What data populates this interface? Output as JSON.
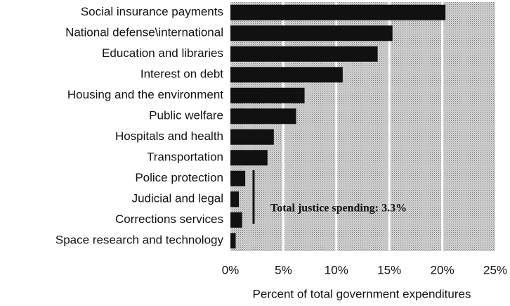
{
  "chart_data": {
    "type": "barh",
    "categories": [
      "Social insurance payments",
      "National defense\\international",
      "Education and libraries",
      "Interest on debt",
      "Housing and the environment",
      "Public welfare",
      "Hospitals and health",
      "Transportation",
      "Police protection",
      "Judicial and legal",
      "Corrections services",
      "Space research and technology"
    ],
    "values": [
      20.3,
      15.3,
      13.9,
      10.6,
      7.0,
      6.2,
      4.1,
      3.5,
      1.4,
      0.8,
      1.1,
      0.5
    ],
    "color": "#111111",
    "xlim": [
      0,
      25
    ],
    "xticks": [
      {
        "value": 0,
        "label": "0%"
      },
      {
        "value": 5,
        "label": "5%"
      },
      {
        "value": 10,
        "label": "10%"
      },
      {
        "value": 15,
        "label": "15%"
      },
      {
        "value": 20,
        "label": "20%"
      },
      {
        "value": 25,
        "label": "25%"
      }
    ],
    "grid": true,
    "xlabel": "Percent of total government expenditures",
    "annotation": "Total justice spending: 3.3%"
  }
}
